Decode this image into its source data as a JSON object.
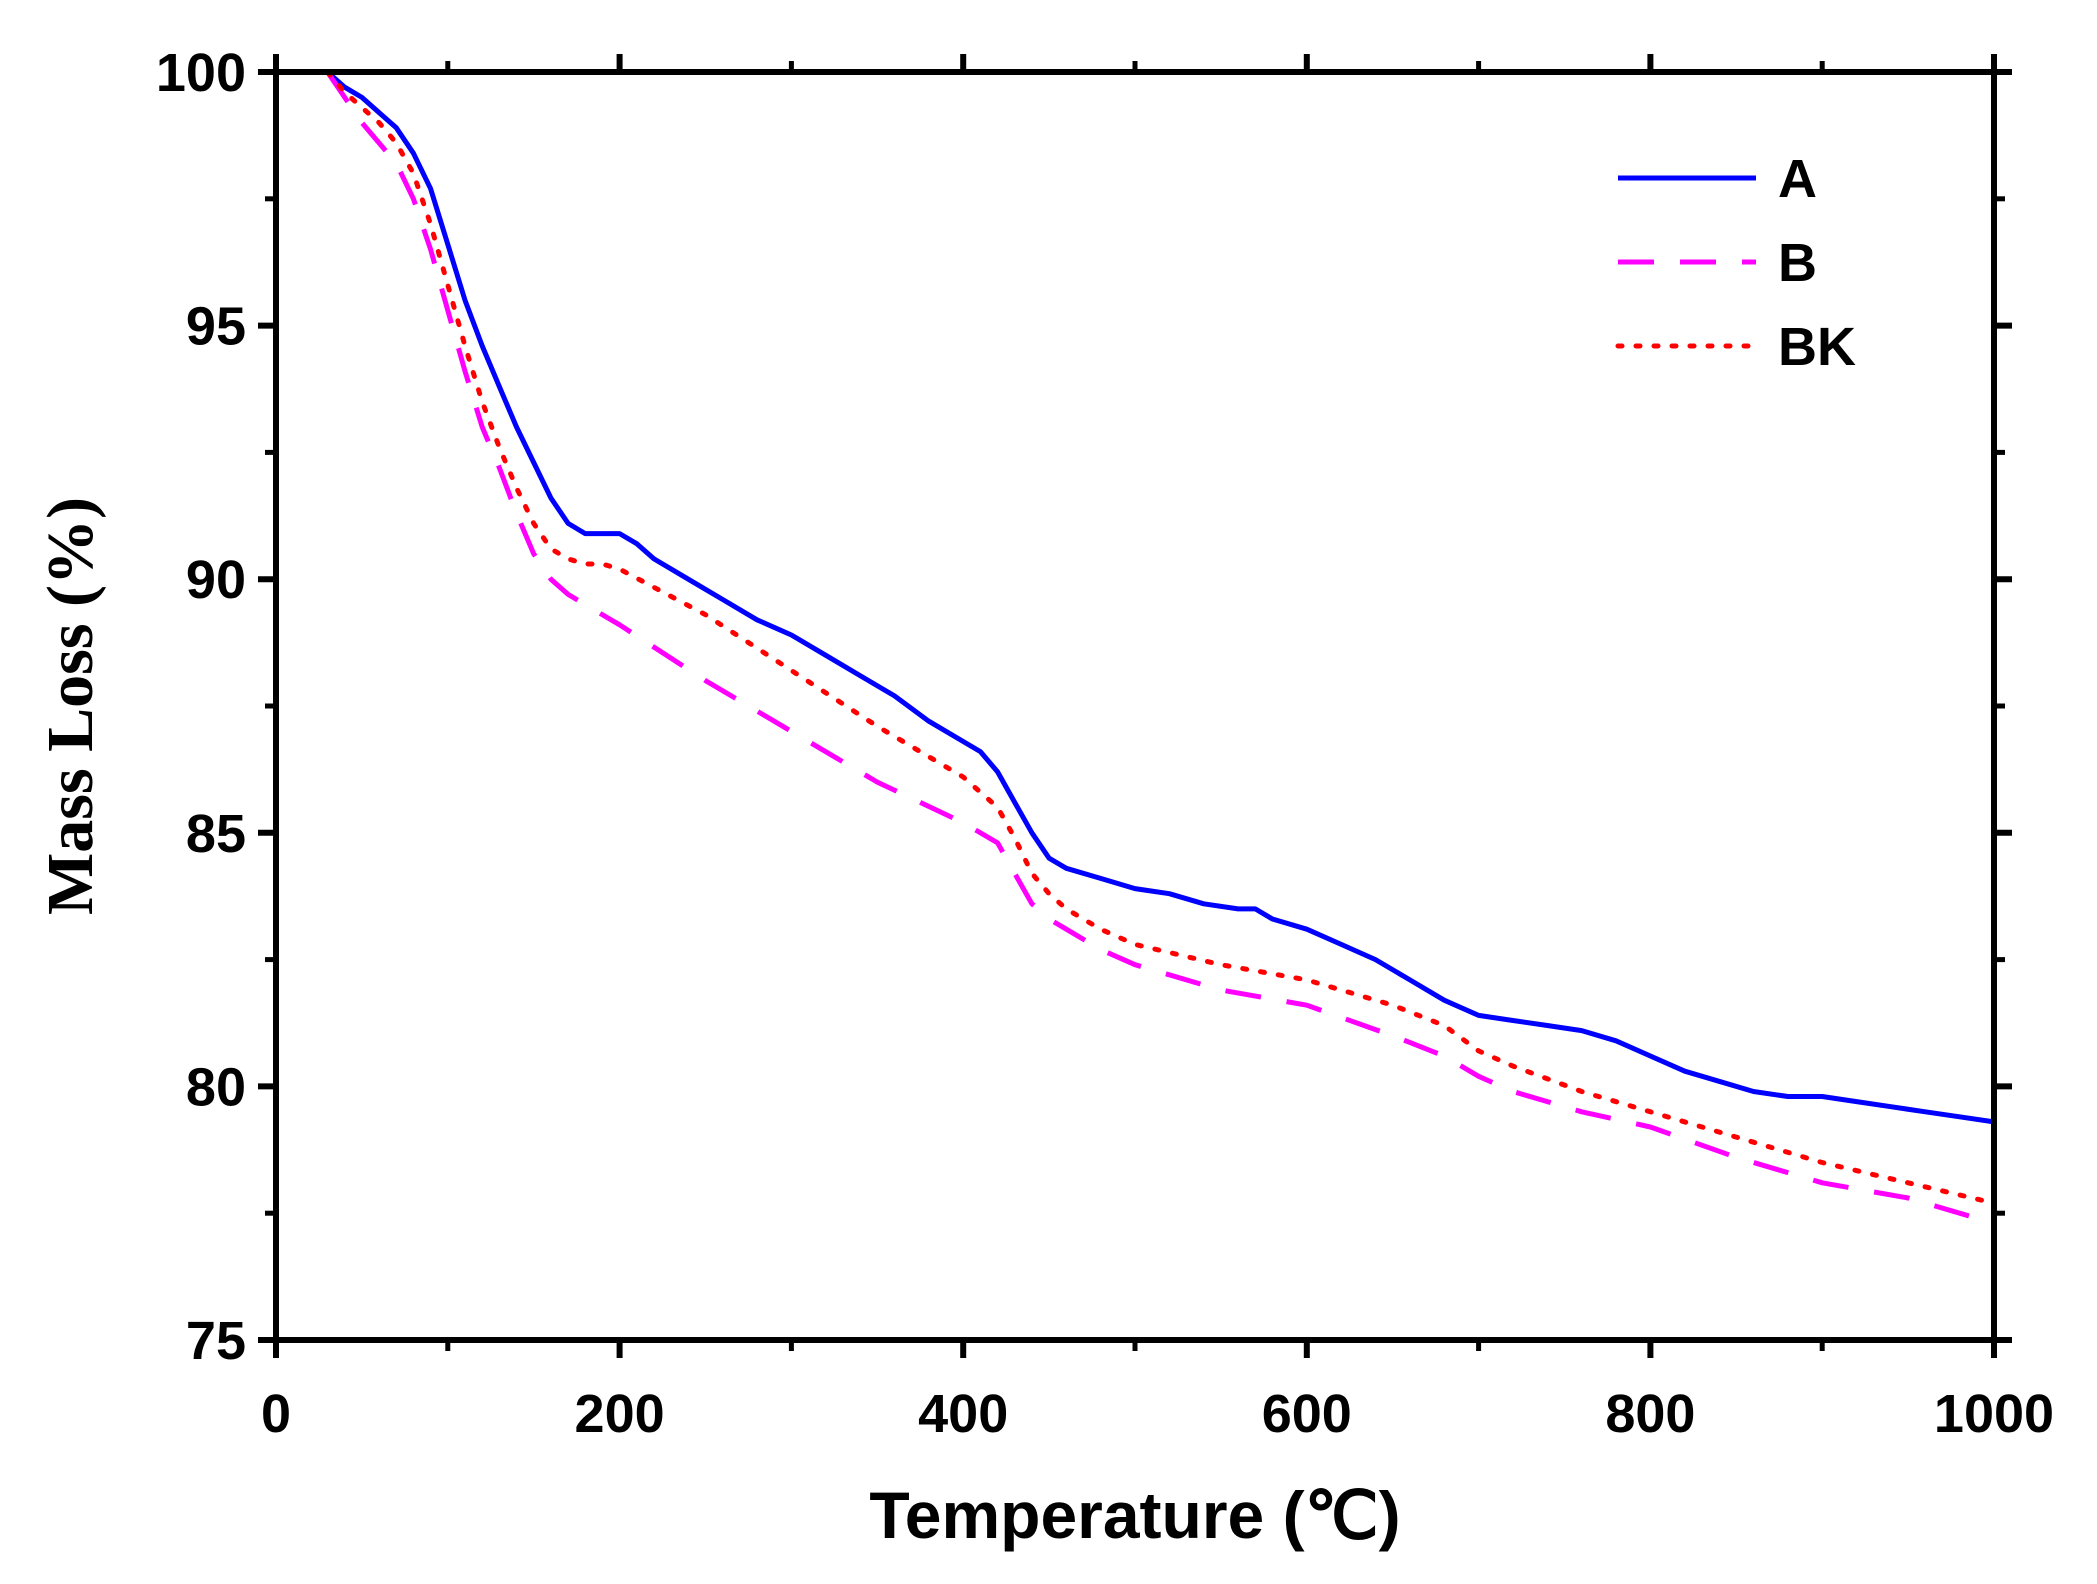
{
  "chart_data": {
    "type": "line",
    "title": "",
    "xlabel": "Temperature (℃)",
    "ylabel": "Mass Loss (%)",
    "xlim": [
      0,
      1000
    ],
    "ylim": [
      75,
      100
    ],
    "x_ticks": [
      0,
      200,
      400,
      600,
      800,
      1000
    ],
    "x_tick_labels": [
      "0",
      "200",
      "400",
      "600",
      "800",
      "1000"
    ],
    "y_ticks": [
      75,
      80,
      85,
      90,
      95,
      100
    ],
    "y_tick_labels": [
      "75",
      "80",
      "85",
      "90",
      "95",
      "100"
    ],
    "grid": false,
    "legend_position": "top-right",
    "series": [
      {
        "name": "A",
        "color": "#0000ff",
        "style": "solid",
        "x": [
          30,
          40,
          50,
          60,
          70,
          80,
          90,
          100,
          110,
          120,
          130,
          140,
          150,
          160,
          170,
          180,
          190,
          200,
          210,
          220,
          240,
          260,
          280,
          300,
          320,
          340,
          360,
          380,
          400,
          410,
          420,
          430,
          440,
          450,
          460,
          480,
          500,
          520,
          540,
          560,
          570,
          580,
          600,
          620,
          640,
          660,
          680,
          700,
          720,
          740,
          760,
          780,
          800,
          820,
          840,
          860,
          880,
          900,
          920,
          940,
          960,
          980,
          1000
        ],
        "y": [
          100,
          99.7,
          99.5,
          99.2,
          98.9,
          98.4,
          97.7,
          96.6,
          95.5,
          94.6,
          93.8,
          93.0,
          92.3,
          91.6,
          91.1,
          90.9,
          90.9,
          90.9,
          90.7,
          90.4,
          90.0,
          89.6,
          89.2,
          88.9,
          88.5,
          88.1,
          87.7,
          87.2,
          86.8,
          86.6,
          86.2,
          85.6,
          85.0,
          84.5,
          84.3,
          84.1,
          83.9,
          83.8,
          83.6,
          83.5,
          83.5,
          83.3,
          83.1,
          82.8,
          82.5,
          82.1,
          81.7,
          81.4,
          81.3,
          81.2,
          81.1,
          80.9,
          80.6,
          80.3,
          80.1,
          79.9,
          79.8,
          79.8,
          79.7,
          79.6,
          79.5,
          79.4,
          79.3
        ]
      },
      {
        "name": "B",
        "color": "#ff00ff",
        "style": "dashed",
        "x": [
          30,
          40,
          50,
          60,
          70,
          80,
          90,
          100,
          110,
          120,
          130,
          140,
          150,
          160,
          170,
          180,
          200,
          250,
          300,
          350,
          400,
          420,
          430,
          440,
          450,
          460,
          480,
          500,
          550,
          600,
          650,
          680,
          700,
          720,
          760,
          800,
          850,
          900,
          950,
          1000
        ],
        "y": [
          100,
          99.5,
          99.0,
          98.6,
          98.2,
          97.5,
          96.5,
          95.3,
          94.1,
          93.0,
          92.2,
          91.3,
          90.5,
          90.0,
          89.7,
          89.5,
          89.1,
          88.0,
          87.0,
          86.0,
          85.2,
          84.8,
          84.2,
          83.6,
          83.3,
          83.1,
          82.7,
          82.4,
          81.9,
          81.6,
          81.0,
          80.6,
          80.2,
          79.9,
          79.5,
          79.2,
          78.6,
          78.1,
          77.8,
          77.3
        ]
      },
      {
        "name": "BK",
        "color": "#ff0000",
        "style": "dotted",
        "x": [
          30,
          40,
          50,
          60,
          70,
          80,
          90,
          100,
          110,
          120,
          130,
          140,
          150,
          160,
          170,
          180,
          190,
          200,
          250,
          300,
          350,
          400,
          420,
          430,
          440,
          450,
          460,
          480,
          500,
          550,
          600,
          650,
          680,
          700,
          720,
          760,
          800,
          850,
          900,
          950,
          1000
        ],
        "y": [
          100,
          99.6,
          99.3,
          99.0,
          98.6,
          98.0,
          97.0,
          95.8,
          94.6,
          93.5,
          92.6,
          91.8,
          91.1,
          90.6,
          90.4,
          90.3,
          90.3,
          90.2,
          89.3,
          88.2,
          87.1,
          86.1,
          85.5,
          84.9,
          84.2,
          83.8,
          83.5,
          83.1,
          82.8,
          82.4,
          82.1,
          81.6,
          81.2,
          80.7,
          80.4,
          79.9,
          79.5,
          79.0,
          78.5,
          78.1,
          77.7
        ]
      }
    ]
  }
}
